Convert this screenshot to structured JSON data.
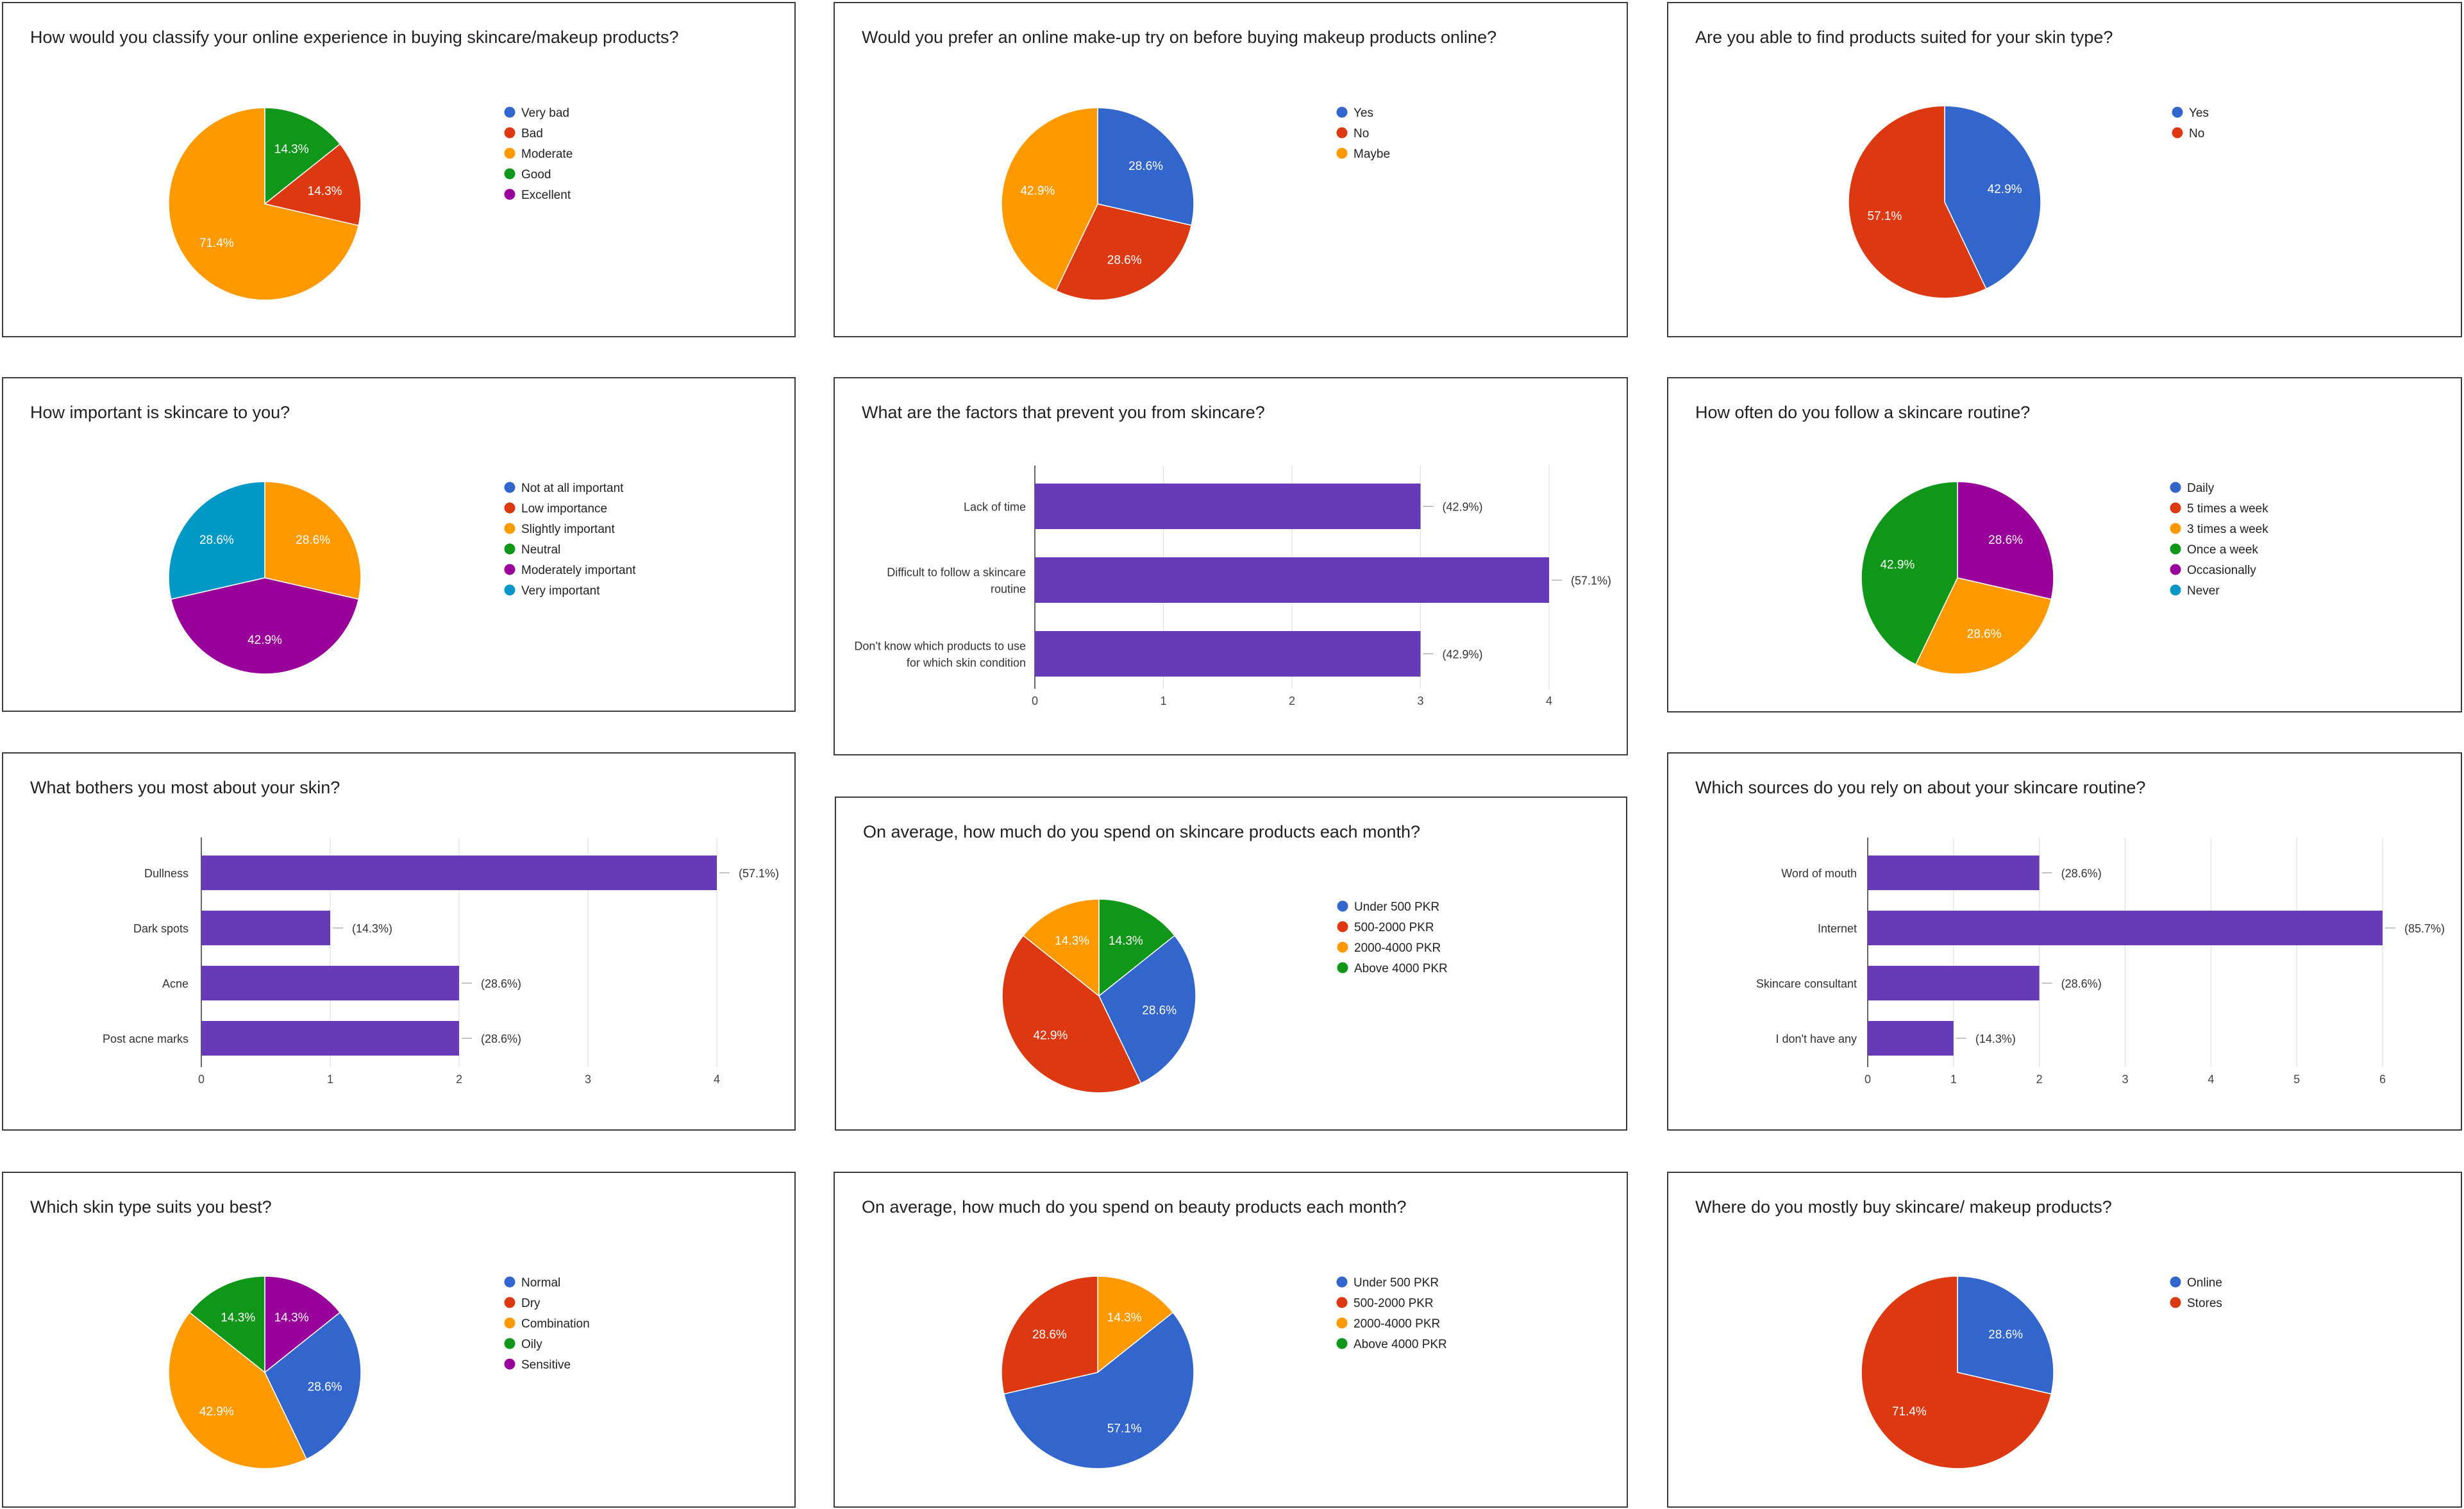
{
  "colors": {
    "blue": "#3366cc",
    "red": "#dc3912",
    "orange": "#ff9900",
    "green": "#109618",
    "purple": "#990099",
    "teal": "#0099c6",
    "bar": "#673ab7"
  },
  "chart_data": [
    {
      "id": "online-experience",
      "type": "pie",
      "title": "How would you classify your online experience in buying skincare/makeup products?",
      "legend": [
        "Very bad",
        "Bad",
        "Moderate",
        "Good",
        "Excellent"
      ],
      "slices": [
        {
          "label": "Good",
          "value": 14.3,
          "color": "green",
          "text": "14.3%"
        },
        {
          "label": "Bad",
          "value": 14.3,
          "color": "red",
          "text": "14.3%"
        },
        {
          "label": "Moderate",
          "value": 71.4,
          "color": "orange",
          "text": "71.4%"
        }
      ]
    },
    {
      "id": "makeup-try-on",
      "type": "pie",
      "title": "Would you prefer an online make-up try on before buying makeup products online?",
      "legend": [
        "Yes",
        "No",
        "Maybe"
      ],
      "slices": [
        {
          "label": "Yes",
          "value": 28.6,
          "color": "blue",
          "text": "28.6%"
        },
        {
          "label": "No",
          "value": 28.6,
          "color": "red",
          "text": "28.6%"
        },
        {
          "label": "Maybe",
          "value": 42.9,
          "color": "orange",
          "text": "42.9%"
        }
      ]
    },
    {
      "id": "skin-type-products",
      "type": "pie",
      "title": "Are you able to find products suited for your skin type?",
      "legend": [
        "Yes",
        "No"
      ],
      "slices": [
        {
          "label": "Yes",
          "value": 42.9,
          "color": "blue",
          "text": "42.9%"
        },
        {
          "label": "No",
          "value": 57.1,
          "color": "red",
          "text": "57.1%"
        }
      ]
    },
    {
      "id": "skincare-importance",
      "type": "pie",
      "title": "How important is skincare to you?",
      "legend": [
        "Not at all important",
        "Low importance",
        "Slightly important",
        "Neutral",
        "Moderately important",
        "Very important"
      ],
      "slices": [
        {
          "label": "Slightly important",
          "value": 28.6,
          "color": "orange",
          "text": "28.6%"
        },
        {
          "label": "Moderately important",
          "value": 42.9,
          "color": "purple",
          "text": "42.9%"
        },
        {
          "label": "Very important",
          "value": 28.6,
          "color": "teal",
          "text": "28.6%"
        }
      ]
    },
    {
      "id": "prevent-factors",
      "type": "bar",
      "title": "What are the factors that prevent you from skincare?",
      "categories": [
        [
          "Lack of time"
        ],
        [
          "Difficult to follow a skincare",
          "routine"
        ],
        [
          "Don't know which products to use",
          "for which skin condition"
        ]
      ],
      "values": [
        3,
        4,
        3
      ],
      "labels": [
        "(42.9%)",
        "(57.1%)",
        "(42.9%)"
      ],
      "xlim": [
        0,
        4
      ],
      "ticks": [
        "0",
        "1",
        "2",
        "3",
        "4"
      ]
    },
    {
      "id": "routine-frequency",
      "type": "pie",
      "title": "How often do you follow a skincare routine?",
      "legend": [
        "Daily",
        "5 times a week",
        "3 times a week",
        "Once a week",
        "Occasionally",
        "Never"
      ],
      "slices": [
        {
          "label": "Occasionally",
          "value": 28.6,
          "color": "purple",
          "text": "28.6%"
        },
        {
          "label": "3 times a week",
          "value": 28.6,
          "color": "orange",
          "text": "28.6%"
        },
        {
          "label": "Once a week",
          "value": 42.9,
          "color": "green",
          "text": "42.9%"
        }
      ]
    },
    {
      "id": "skin-bothers",
      "type": "bar",
      "title": "What bothers you most about your skin?",
      "categories": [
        [
          "Dullness"
        ],
        [
          "Dark spots"
        ],
        [
          "Acne"
        ],
        [
          "Post acne marks"
        ]
      ],
      "values": [
        4,
        1,
        2,
        2
      ],
      "labels": [
        "(57.1%)",
        "(14.3%)",
        "(28.6%)",
        "(28.6%)"
      ],
      "xlim": [
        0,
        4
      ],
      "ticks": [
        "0",
        "1",
        "2",
        "3",
        "4"
      ]
    },
    {
      "id": "skincare-spend",
      "type": "pie",
      "title": "On average, how much do you spend on skincare products each month?",
      "legend": [
        "Under 500 PKR",
        "500-2000 PKR",
        "2000-4000 PKR",
        "Above 4000 PKR"
      ],
      "slices": [
        {
          "label": "Above 4000 PKR",
          "value": 14.3,
          "color": "green",
          "text": "14.3%"
        },
        {
          "label": "Under 500 PKR",
          "value": 28.6,
          "color": "blue",
          "text": "28.6%"
        },
        {
          "label": "500-2000 PKR",
          "value": 42.9,
          "color": "red",
          "text": "42.9%"
        },
        {
          "label": "2000-4000 PKR",
          "value": 14.3,
          "color": "orange",
          "text": "14.3%"
        }
      ]
    },
    {
      "id": "info-sources",
      "type": "bar",
      "title": "Which sources do you rely on about your skincare routine?",
      "categories": [
        [
          "Word of mouth"
        ],
        [
          "Internet"
        ],
        [
          "Skincare consultant"
        ],
        [
          "I don't have any"
        ]
      ],
      "values": [
        2,
        6,
        2,
        1
      ],
      "labels": [
        "(28.6%)",
        "(85.7%)",
        "(28.6%)",
        "(14.3%)"
      ],
      "xlim": [
        0,
        6
      ],
      "ticks": [
        "0",
        "1",
        "2",
        "3",
        "4",
        "5",
        "6"
      ]
    },
    {
      "id": "skin-type",
      "type": "pie",
      "title": "Which skin type suits you best?",
      "legend": [
        "Normal",
        "Dry",
        "Combination",
        "Oily",
        "Sensitive"
      ],
      "slices": [
        {
          "label": "Sensitive",
          "value": 14.3,
          "color": "purple",
          "text": "14.3%"
        },
        {
          "label": "Normal",
          "value": 28.6,
          "color": "blue",
          "text": "28.6%"
        },
        {
          "label": "Combination",
          "value": 42.9,
          "color": "orange",
          "text": "42.9%"
        },
        {
          "label": "Oily",
          "value": 14.3,
          "color": "green",
          "text": "14.3%"
        }
      ]
    },
    {
      "id": "beauty-spend",
      "type": "pie",
      "title": "On average, how much do you spend on beauty products each month?",
      "legend": [
        "Under 500 PKR",
        "500-2000 PKR",
        "2000-4000 PKR",
        "Above 4000 PKR"
      ],
      "slices": [
        {
          "label": "2000-4000 PKR",
          "value": 14.3,
          "color": "orange",
          "text": "14.3%"
        },
        {
          "label": "Under 500 PKR",
          "value": 57.1,
          "color": "blue",
          "text": "57.1%"
        },
        {
          "label": "500-2000 PKR",
          "value": 28.6,
          "color": "red",
          "text": "28.6%"
        }
      ]
    },
    {
      "id": "purchase-place",
      "type": "pie",
      "title": "Where do you mostly buy skincare/ makeup products?",
      "legend": [
        "Online",
        "Stores"
      ],
      "slices": [
        {
          "label": "Online",
          "value": 28.6,
          "color": "blue",
          "text": "28.6%"
        },
        {
          "label": "Stores",
          "value": 71.4,
          "color": "red",
          "text": "71.4%"
        }
      ]
    }
  ]
}
